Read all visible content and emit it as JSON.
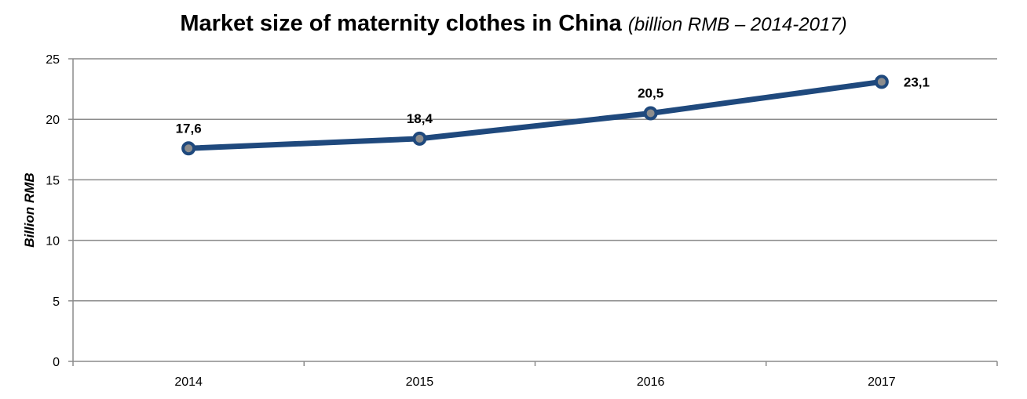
{
  "chart_data": {
    "type": "line",
    "title": "Market size of maternity clothes in China",
    "subtitle": "(billion RMB – 2014-2017)",
    "xlabel": "",
    "ylabel": "Billion RMB",
    "categories": [
      "2014",
      "2015",
      "2016",
      "2017"
    ],
    "series": [
      {
        "name": "Market size",
        "values": [
          17.6,
          18.4,
          20.5,
          23.1
        ],
        "labels": [
          "17,6",
          "18,4",
          "20,5",
          "23,1"
        ]
      }
    ],
    "ylim": [
      0,
      25
    ],
    "yticks": [
      0,
      5,
      10,
      15,
      20,
      25
    ],
    "grid": true,
    "legend": "none",
    "colors": {
      "line": "#1f497d",
      "marker_fill": "#8c8c8c",
      "grid": "#8c8c8c"
    }
  }
}
